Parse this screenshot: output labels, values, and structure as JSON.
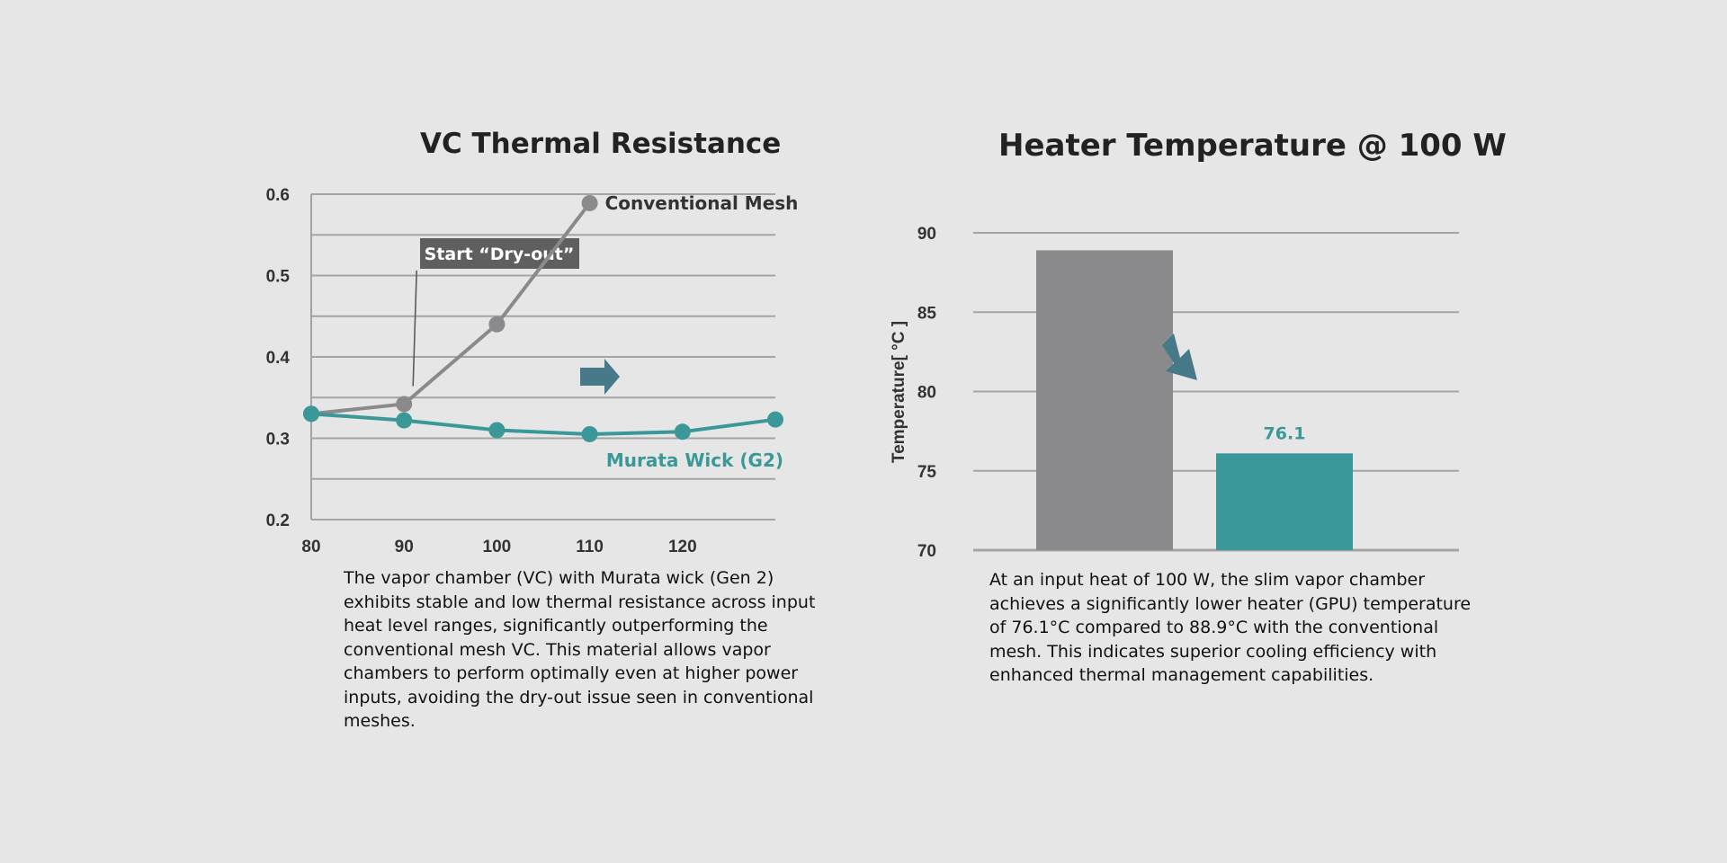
{
  "colors": {
    "background": "#e6e6e6",
    "conventional": "#8a8a8c",
    "murata": "#3a9898",
    "arrow": "#477a88",
    "callout_bg": "#5f5f5f",
    "grid": "#a4a4a4"
  },
  "left": {
    "caption": "The vapor chamber (VC) with Murata wick (Gen 2) exhibits stable and low thermal resistance across input heat level ranges, significantly outperforming the conventional mesh VC. This material allows vapor chambers to perform optimally even at higher power inputs, avoiding the dry-out issue seen in conventional meshes."
  },
  "right": {
    "caption": "At an input heat of 100 W, the slim vapor chamber achieves a significantly lower heater (GPU) temperature of 76.1°C compared to 88.9°C with the conventional mesh. This indicates superior cooling efficiency with enhanced thermal management capabilities."
  },
  "chart_data": [
    {
      "type": "line",
      "title": "VC Thermal Resistance",
      "xlabel": "",
      "ylabel": "",
      "x": [
        80,
        90,
        100,
        110,
        120,
        130
      ],
      "x_tick_labels": [
        "80",
        "90",
        "100",
        "110",
        "120"
      ],
      "xlim": [
        80,
        130
      ],
      "ylim": [
        0.2,
        0.6
      ],
      "y_tick_labels": [
        "0.2",
        "0.3",
        "0.4",
        "0.5",
        "0.6"
      ],
      "grid": true,
      "series": [
        {
          "name": "Conventional Mesh",
          "x": [
            80,
            90,
            100,
            110
          ],
          "values": [
            0.33,
            0.342,
            0.44,
            0.589
          ]
        },
        {
          "name": "Murata Wick (G2)",
          "x": [
            80,
            90,
            100,
            110,
            120,
            130
          ],
          "values": [
            0.33,
            0.322,
            0.31,
            0.305,
            0.308,
            0.323
          ]
        }
      ],
      "annotations": [
        {
          "text": "Start “Dry-out”",
          "points_to_x": 90
        }
      ]
    },
    {
      "type": "bar",
      "title": "Heater Temperature @ 100 W",
      "xlabel": "",
      "ylabel": "Temperature[ °C ]",
      "categories": [
        "",
        ""
      ],
      "values": [
        88.9,
        76.1
      ],
      "data_labels": [
        "",
        "76.1"
      ],
      "ylim": [
        70,
        90
      ],
      "y_tick_labels": [
        "70",
        "75",
        "80",
        "85",
        "90"
      ],
      "grid": true
    }
  ]
}
